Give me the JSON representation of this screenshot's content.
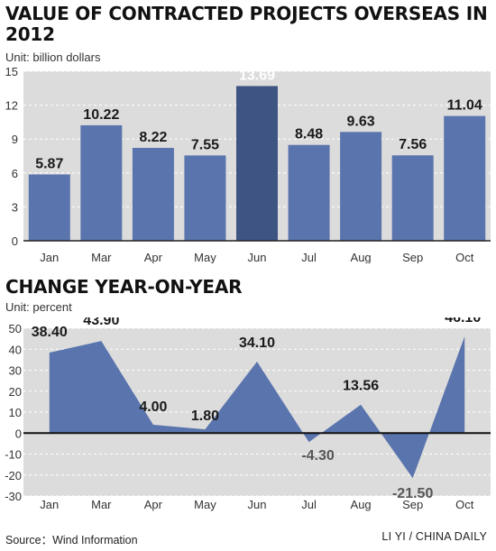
{
  "colors": {
    "bar": "#5a74ad",
    "bar_highlight": "#3e5483",
    "area": "#5a74ad",
    "panel": "#dcdcdc",
    "text": "#1a1a1a"
  },
  "chart_data": [
    {
      "type": "bar",
      "title": "VALUE OF CONTRACTED PROJECTS OVERSEAS IN 2012",
      "unit": "Unit: billion dollars",
      "categories": [
        "Jan",
        "Mar",
        "Apr",
        "May",
        "Jun",
        "Jul",
        "Aug",
        "Sep",
        "Oct"
      ],
      "values": [
        5.87,
        10.22,
        8.22,
        7.55,
        13.69,
        8.48,
        9.63,
        7.56,
        11.04
      ],
      "value_labels": [
        "5.87",
        "10.22",
        "8.22",
        "7.55",
        "13.69",
        "8.48",
        "9.63",
        "7.56",
        "11.04"
      ],
      "highlight": "Jun",
      "ylim": [
        0,
        15
      ],
      "yticks": [
        0,
        3,
        6,
        9,
        12,
        15
      ],
      "grid": true
    },
    {
      "type": "area",
      "title": "CHANGE YEAR-ON-YEAR",
      "unit": "Unit: percent",
      "categories": [
        "Jan",
        "Mar",
        "Apr",
        "May",
        "Jun",
        "Jul",
        "Aug",
        "Sep",
        "Oct"
      ],
      "values": [
        38.4,
        43.9,
        4.0,
        1.8,
        34.1,
        -4.3,
        13.56,
        -21.5,
        46.1
      ],
      "value_labels": [
        "38.40",
        "43.90",
        "4.00",
        "1.80",
        "34.10",
        "-4.30",
        "13.56",
        "-21.50",
        "46.10"
      ],
      "ylim": [
        -30,
        50
      ],
      "yticks": [
        -30,
        -20,
        -10,
        0,
        10,
        20,
        30,
        40,
        50
      ],
      "grid": true
    }
  ],
  "footer": {
    "source": "Source：Wind Information",
    "credit": "LI YI / CHINA DAILY"
  }
}
